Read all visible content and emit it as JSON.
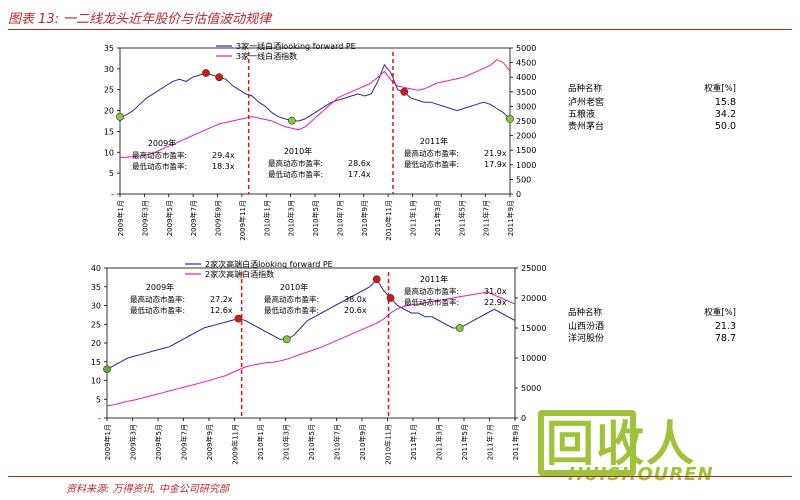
{
  "header": {
    "title": "图表 13: 一二线龙头近年股价与估值波动规律"
  },
  "footer": {
    "text": "资料来源: 万得资讯, 中金公司研究部"
  },
  "watermark": {
    "text": "回收人",
    "text_en": "HUISHOUREN"
  },
  "chart_data": [
    {
      "type": "line",
      "title": "",
      "series": [
        {
          "name": "3家一线白酒looking forward PE",
          "color": "#2f2a8f",
          "axis": "left",
          "values": [
            18.5,
            19,
            20,
            21.5,
            23,
            24,
            25,
            26,
            27,
            27.5,
            27,
            28,
            28.5,
            29,
            28.5,
            28,
            27.5,
            26,
            25,
            24,
            23.5,
            22,
            21,
            19.5,
            18.5,
            18,
            17.6,
            17.5,
            18,
            19,
            20,
            21,
            22,
            22.5,
            23,
            23.5,
            24,
            23.5,
            24,
            27,
            31,
            29,
            25,
            24.5,
            23,
            22.5,
            22,
            22,
            21.5,
            21,
            20.5,
            20,
            20.5,
            21,
            21.5,
            22,
            21.5,
            20.5,
            19.5,
            18
          ]
        },
        {
          "name": "3家一线白酒指数",
          "color": "#e020b0",
          "axis": "right",
          "values": [
            1250,
            1260,
            1280,
            1300,
            1350,
            1400,
            1500,
            1600,
            1700,
            1800,
            1900,
            2000,
            2100,
            2200,
            2300,
            2400,
            2450,
            2500,
            2550,
            2600,
            2650,
            2600,
            2550,
            2500,
            2400,
            2300,
            2250,
            2200,
            2300,
            2500,
            2700,
            2900,
            3100,
            3300,
            3400,
            3500,
            3600,
            3700,
            3800,
            4000,
            4200,
            3900,
            3700,
            3650,
            3600,
            3550,
            3600,
            3700,
            3800,
            3850,
            3900,
            3950,
            4000,
            4100,
            4200,
            4300,
            4400,
            4600,
            4500,
            4200
          ]
        }
      ],
      "left_axis": {
        "ticks": [
          "35",
          "30",
          "25",
          "20",
          "15",
          "10",
          "5",
          "-"
        ],
        "range": [
          0,
          35
        ]
      },
      "right_axis": {
        "ticks": [
          "5000",
          "4500",
          "4000",
          "3500",
          "3000",
          "2500",
          "2000",
          "1500",
          "1000",
          "500",
          "0"
        ],
        "range": [
          0,
          5000
        ]
      },
      "x_ticks": [
        "2009年1月",
        "2009年3月",
        "2009年5月",
        "2009年7月",
        "2009年9月",
        "2009年11月",
        "2010年1月",
        "2010年3月",
        "2010年5月",
        "2010年7月",
        "2010年9月",
        "2010年11月",
        "2011年1月",
        "2011年3月",
        "2011年5月",
        "2011年7月",
        "2011年9月"
      ],
      "annotations": [
        {
          "year": "2009年",
          "high_label": "最高动态市盈率:",
          "high": "29.4x",
          "low_label": "最低动态市盈率:",
          "low": "18.3x"
        },
        {
          "year": "2010年",
          "high_label": "最高动态市盈率:",
          "high": "28.6x",
          "low_label": "最低动态市盈率:",
          "low": "17.4x"
        },
        {
          "year": "2011年",
          "high_label": "最高动态市盈率:",
          "high": "21.9x",
          "low_label": "最低动态市盈率:",
          "low": "17.9x"
        }
      ],
      "weights_table": {
        "headers": [
          "品种名称",
          "权重[%]"
        ],
        "rows": [
          [
            "泸州老窖",
            "15.8"
          ],
          [
            "五粮液",
            "34.2"
          ],
          [
            "贵州茅台",
            "50.0"
          ]
        ]
      }
    },
    {
      "type": "line",
      "title": "",
      "series": [
        {
          "name": "2家次高端白酒looking forward PE",
          "color": "#2f2a8f",
          "axis": "left",
          "values": [
            13,
            14,
            15,
            16,
            16.5,
            17,
            17.5,
            18,
            18.5,
            19,
            20,
            21,
            22,
            23,
            24,
            24.5,
            25,
            25.5,
            26,
            26.5,
            26,
            25,
            24,
            23,
            22,
            21,
            21,
            22,
            24,
            26,
            27,
            28,
            29,
            30,
            31,
            32,
            33,
            34,
            35,
            37,
            34,
            32,
            30,
            29,
            28,
            28,
            27,
            27,
            26,
            25,
            24,
            24,
            25,
            26,
            27,
            28,
            29,
            28,
            27,
            26
          ]
        },
        {
          "name": "2家次高端白酒指数",
          "color": "#e020b0",
          "axis": "right",
          "values": [
            2000,
            2200,
            2500,
            2800,
            3000,
            3300,
            3600,
            3900,
            4200,
            4500,
            4800,
            5100,
            5400,
            5700,
            6000,
            6300,
            6700,
            7000,
            7500,
            8000,
            8500,
            8800,
            9000,
            9200,
            9300,
            9500,
            9800,
            10200,
            10600,
            11000,
            11400,
            11800,
            12300,
            12800,
            13300,
            13800,
            14300,
            14800,
            15300,
            15800,
            16500,
            17500,
            18200,
            18600,
            18900,
            19000,
            19200,
            19400,
            19600,
            19800,
            20000,
            20200,
            20400,
            20600,
            20800,
            21000,
            20500,
            20000,
            19500,
            19000
          ]
        }
      ],
      "left_axis": {
        "ticks": [
          "40",
          "35",
          "30",
          "25",
          "20",
          "15",
          "10",
          "5",
          "-"
        ],
        "range": [
          0,
          40
        ]
      },
      "right_axis": {
        "ticks": [
          "25000",
          "20000",
          "15000",
          "10000",
          "5000",
          "0"
        ],
        "range": [
          0,
          25000
        ]
      },
      "x_ticks": [
        "2009年1月",
        "2009年3月",
        "2009年5月",
        "2009年7月",
        "2009年9月",
        "2009年11月",
        "2010年1月",
        "2010年3月",
        "2010年5月",
        "2010年7月",
        "2010年9月",
        "2010年11月",
        "2011年1月",
        "2011年3月",
        "2011年5月",
        "2011年7月",
        "2011年9月"
      ],
      "annotations": [
        {
          "year": "2009年",
          "high_label": "最高动态市盈率:",
          "high": "27.2x",
          "low_label": "最低动态市盈率:",
          "low": "12.6x"
        },
        {
          "year": "2010年",
          "high_label": "最高动态市盈率:",
          "high": "38.0x",
          "low_label": "最低动态市盈率:",
          "low": "20.6x"
        },
        {
          "year": "2011年",
          "high_label": "最高动态市盈率:",
          "high": "31.0x",
          "low_label": "最低动态市盈率:",
          "low": "22.9x"
        }
      ],
      "weights_table": {
        "headers": [
          "品种名称",
          "权重[%]"
        ],
        "rows": [
          [
            "山西汾酒",
            "21.3"
          ],
          [
            "洋河股份",
            "78.7"
          ]
        ]
      }
    }
  ]
}
